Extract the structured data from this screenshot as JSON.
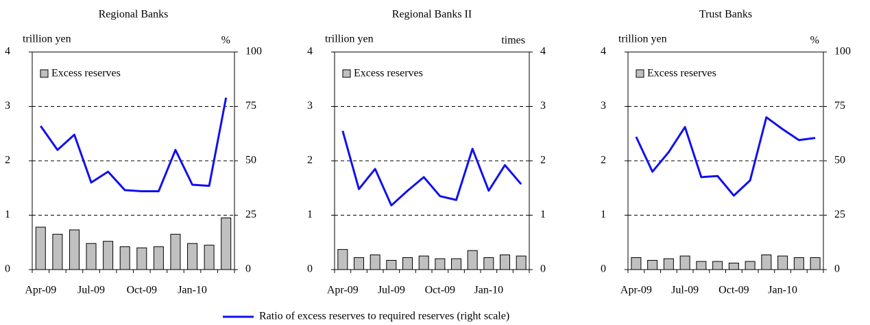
{
  "chart_data": [
    {
      "type": "bar-line",
      "title": "Regional Banks",
      "ylabel": "trillion yen",
      "y2label": "%",
      "categories": [
        "Apr-09",
        null,
        null,
        "Jul-09",
        null,
        null,
        "Oct-09",
        null,
        null,
        "Jan-10",
        null,
        null
      ],
      "ylim": [
        0,
        4
      ],
      "yticks": [
        0,
        1,
        2,
        3,
        4
      ],
      "y2lim": [
        0,
        100
      ],
      "y2ticks": [
        0,
        25,
        50,
        75,
        100
      ],
      "grid": true,
      "series": [
        {
          "name": "Excess reserves",
          "type": "bar",
          "color": "#c0c0c0",
          "values": [
            0.78,
            0.65,
            0.73,
            0.48,
            0.52,
            0.42,
            0.4,
            0.42,
            0.65,
            0.48,
            0.45,
            0.95
          ]
        },
        {
          "name": "Ratio of excess reserves to required reserves (right scale)",
          "type": "line",
          "axis": "y2",
          "color": "#1010f0",
          "values": [
            66,
            55,
            62,
            40,
            45,
            36.5,
            36,
            36,
            55,
            39,
            38.5,
            79
          ]
        }
      ]
    },
    {
      "type": "bar-line",
      "title": "Regional Banks II",
      "ylabel": "trillion yen",
      "y2label": "times",
      "categories": [
        "Apr-09",
        null,
        null,
        "Jul-09",
        null,
        null,
        "Oct-09",
        null,
        null,
        "Jan-10",
        null,
        null
      ],
      "ylim": [
        0,
        4
      ],
      "yticks": [
        0,
        1,
        2,
        3,
        4
      ],
      "y2lim": [
        0,
        4
      ],
      "y2ticks": [
        0,
        1,
        2,
        3,
        4
      ],
      "grid": true,
      "series": [
        {
          "name": "Excess reserves",
          "type": "bar",
          "color": "#c0c0c0",
          "values": [
            0.37,
            0.22,
            0.27,
            0.17,
            0.22,
            0.25,
            0.2,
            0.2,
            0.35,
            0.22,
            0.27,
            0.25
          ]
        },
        {
          "type": "line",
          "axis": "y2",
          "color": "#1010f0",
          "values": [
            2.55,
            1.48,
            1.85,
            1.18,
            1.45,
            1.7,
            1.35,
            1.28,
            2.22,
            1.45,
            1.92,
            1.57
          ]
        }
      ]
    },
    {
      "type": "bar-line",
      "title": "Trust Banks",
      "ylabel": "trillion yen",
      "y2label": "%",
      "categories": [
        "Apr-09",
        null,
        null,
        "Jul-09",
        null,
        null,
        "Oct-09",
        null,
        null,
        "Jan-10",
        null,
        null
      ],
      "ylim": [
        0,
        4
      ],
      "yticks": [
        0,
        1,
        2,
        3,
        4
      ],
      "y2lim": [
        0,
        100
      ],
      "y2ticks": [
        0,
        25,
        50,
        75,
        100
      ],
      "grid": true,
      "series": [
        {
          "name": "Excess reserves",
          "type": "bar",
          "color": "#c0c0c0",
          "values": [
            0.22,
            0.17,
            0.2,
            0.25,
            0.15,
            0.15,
            0.12,
            0.15,
            0.27,
            0.25,
            0.22,
            0.22
          ]
        },
        {
          "type": "line",
          "axis": "y2",
          "color": "#1010f0",
          "values": [
            61,
            45,
            54,
            65.5,
            42.5,
            43,
            34,
            41,
            70,
            64.5,
            59.5,
            60.5
          ]
        }
      ]
    }
  ]
}
